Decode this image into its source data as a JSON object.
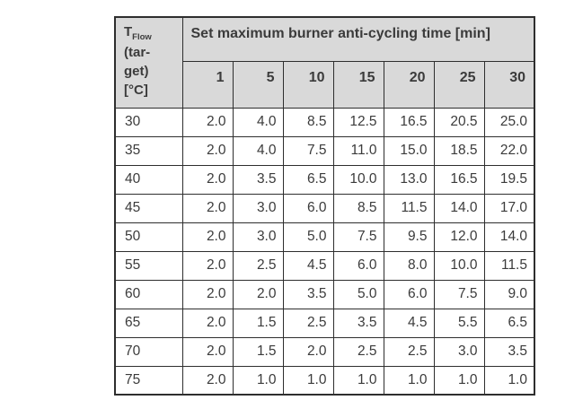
{
  "colors": {
    "header_bg": "#d9d9d9",
    "border": "#2e2e2e",
    "text": "#3b3b3b",
    "body_bg": "#ffffff"
  },
  "chart_data": {
    "type": "table",
    "title": "Set maximum burner anti-cycling time [min]",
    "row_header": {
      "symbol": "T",
      "subscript": "Flow",
      "line2": "(tar-",
      "line3": "get)",
      "line4": "[°C]"
    },
    "columns": [
      "1",
      "5",
      "10",
      "15",
      "20",
      "25",
      "30"
    ],
    "rows": [
      {
        "temp": "30",
        "values": [
          "2.0",
          "4.0",
          "8.5",
          "12.5",
          "16.5",
          "20.5",
          "25.0"
        ]
      },
      {
        "temp": "35",
        "values": [
          "2.0",
          "4.0",
          "7.5",
          "11.0",
          "15.0",
          "18.5",
          "22.0"
        ]
      },
      {
        "temp": "40",
        "values": [
          "2.0",
          "3.5",
          "6.5",
          "10.0",
          "13.0",
          "16.5",
          "19.5"
        ]
      },
      {
        "temp": "45",
        "values": [
          "2.0",
          "3.0",
          "6.0",
          "8.5",
          "11.5",
          "14.0",
          "17.0"
        ]
      },
      {
        "temp": "50",
        "values": [
          "2.0",
          "3.0",
          "5.0",
          "7.5",
          "9.5",
          "12.0",
          "14.0"
        ]
      },
      {
        "temp": "55",
        "values": [
          "2.0",
          "2.5",
          "4.5",
          "6.0",
          "8.0",
          "10.0",
          "11.5"
        ]
      },
      {
        "temp": "60",
        "values": [
          "2.0",
          "2.0",
          "3.5",
          "5.0",
          "6.0",
          "7.5",
          "9.0"
        ]
      },
      {
        "temp": "65",
        "values": [
          "2.0",
          "1.5",
          "2.5",
          "3.5",
          "4.5",
          "5.5",
          "6.5"
        ]
      },
      {
        "temp": "70",
        "values": [
          "2.0",
          "1.5",
          "2.0",
          "2.5",
          "2.5",
          "3.0",
          "3.5"
        ]
      },
      {
        "temp": "75",
        "values": [
          "2.0",
          "1.0",
          "1.0",
          "1.0",
          "1.0",
          "1.0",
          "1.0"
        ]
      }
    ]
  }
}
